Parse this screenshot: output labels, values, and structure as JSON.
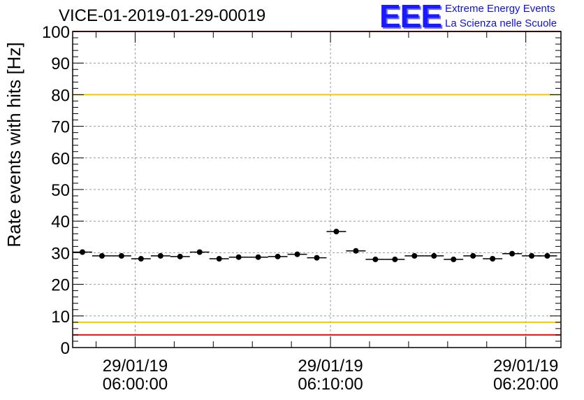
{
  "header": {
    "run_title": "VICE-01-2019-01-29-00019",
    "logo_text": "EEE",
    "logo_line1": "Extreme Energy Events",
    "logo_line2": "La Scienza nelle Scuole"
  },
  "colors": {
    "frame": "#000000",
    "grid": "#9a9a9a",
    "marker": "#000000",
    "limit_red": "#ee1111",
    "limit_yellow": "#eecc00"
  },
  "chart_data": {
    "type": "scatter",
    "title": "VICE-01-2019-01-29-00019",
    "xlabel": "",
    "ylabel": "Rate events with hits [Hz]",
    "ylim": [
      0,
      100
    ],
    "y_ticks": [
      0,
      10,
      20,
      30,
      40,
      50,
      60,
      70,
      80,
      90,
      100
    ],
    "x_unit": "minutes after 29/01/19 06:00:00",
    "xlim": [
      -3.2,
      21.8
    ],
    "x_ticks": [
      {
        "value": 0,
        "date": "29/01/19",
        "time": "06:00:00"
      },
      {
        "value": 10,
        "date": "29/01/19",
        "time": "06:10:00"
      },
      {
        "value": 20,
        "date": "29/01/19",
        "time": "06:20:00"
      }
    ],
    "bin_width": 1.0,
    "x": [
      -2.7,
      -1.7,
      -0.7,
      0.3,
      1.3,
      2.3,
      3.3,
      4.3,
      5.3,
      6.3,
      7.3,
      8.3,
      9.3,
      10.3,
      11.3,
      12.3,
      13.3,
      14.3,
      15.3,
      16.3,
      17.3,
      18.3,
      19.3,
      20.3,
      21.1
    ],
    "y": [
      30.2,
      29.0,
      29.0,
      28.1,
      29.0,
      28.8,
      30.2,
      28.1,
      28.6,
      28.6,
      28.8,
      29.5,
      28.4,
      36.7,
      30.6,
      27.9,
      27.9,
      29.0,
      29.0,
      27.9,
      29.0,
      28.1,
      29.7,
      29.0,
      29.0
    ],
    "threshold_lines": [
      {
        "color": "red",
        "value": 100
      },
      {
        "color": "yellow",
        "value": 80
      },
      {
        "color": "yellow",
        "value": 8
      },
      {
        "color": "red",
        "value": 4
      }
    ],
    "grid": true,
    "legend": "none"
  }
}
